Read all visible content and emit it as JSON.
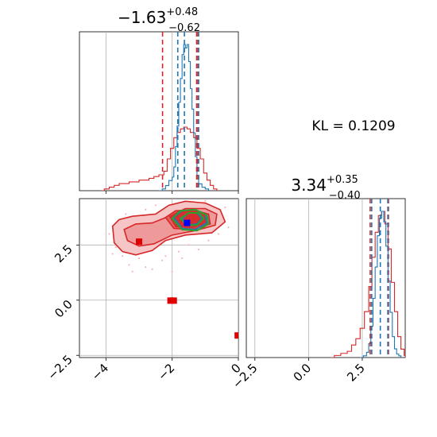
{
  "chart_data": {
    "type": "corner",
    "panels": [
      {
        "id": "param1_hist",
        "kind": "histogram",
        "title": {
          "value": "−1.63",
          "plus": "+0.48",
          "minus": "−0.62"
        },
        "xlim": [
          -4.8,
          0.0
        ],
        "grid": true,
        "blue_step": [
          [
            -2.4,
            0
          ],
          [
            -2.3,
            1
          ],
          [
            -2.2,
            3
          ],
          [
            -2.1,
            6
          ],
          [
            -2.0,
            8
          ],
          [
            -1.95,
            14
          ],
          [
            -1.9,
            26
          ],
          [
            -1.85,
            38
          ],
          [
            -1.8,
            52
          ],
          [
            -1.75,
            66
          ],
          [
            -1.7,
            80
          ],
          [
            -1.65,
            86
          ],
          [
            -1.6,
            84
          ],
          [
            -1.55,
            86
          ],
          [
            -1.5,
            76
          ],
          [
            -1.45,
            60
          ],
          [
            -1.4,
            48
          ],
          [
            -1.35,
            34
          ],
          [
            -1.3,
            20
          ],
          [
            -1.25,
            9
          ],
          [
            -1.2,
            4
          ],
          [
            -1.1,
            2
          ],
          [
            -1.0,
            1
          ],
          [
            -0.9,
            0
          ]
        ],
        "red_step": [
          [
            -4.15,
            0
          ],
          [
            -4.05,
            1
          ],
          [
            -3.9,
            2
          ],
          [
            -3.75,
            3
          ],
          [
            -3.6,
            4
          ],
          [
            -3.45,
            4
          ],
          [
            -3.3,
            5
          ],
          [
            -3.15,
            5
          ],
          [
            -3.0,
            6
          ],
          [
            -2.85,
            6
          ],
          [
            -2.7,
            7
          ],
          [
            -2.55,
            8
          ],
          [
            -2.4,
            9
          ],
          [
            -2.25,
            11
          ],
          [
            -2.15,
            18
          ],
          [
            -2.05,
            24
          ],
          [
            -1.95,
            30
          ],
          [
            -1.85,
            33
          ],
          [
            -1.75,
            35
          ],
          [
            -1.65,
            36
          ],
          [
            -1.55,
            35
          ],
          [
            -1.45,
            33
          ],
          [
            -1.35,
            30
          ],
          [
            -1.25,
            24
          ],
          [
            -1.15,
            18
          ],
          [
            -1.05,
            10
          ],
          [
            -0.95,
            6
          ],
          [
            -0.85,
            3
          ],
          [
            -0.75,
            1
          ],
          [
            -0.65,
            0
          ]
        ],
        "vlines_red": [
          -2.29,
          -1.26,
          -1.22
        ],
        "vlines_blue": [
          -1.83,
          -1.63,
          -1.2
        ]
      },
      {
        "id": "param2_hist",
        "kind": "histogram",
        "title": {
          "value": "3.34",
          "plus": "+0.35",
          "minus": "−0.40"
        },
        "xlim": [
          -2.9,
          4.5
        ],
        "xticks": [
          -2.5,
          0.0,
          2.5
        ],
        "xtick_labels": [
          "−2.5",
          "0.0",
          "2.5"
        ],
        "grid": true,
        "blue_step": [
          [
            2.4,
            0
          ],
          [
            2.55,
            1
          ],
          [
            2.7,
            3
          ],
          [
            2.8,
            8
          ],
          [
            2.9,
            18
          ],
          [
            3.0,
            34
          ],
          [
            3.1,
            52
          ],
          [
            3.2,
            70
          ],
          [
            3.3,
            80
          ],
          [
            3.4,
            84
          ],
          [
            3.5,
            78
          ],
          [
            3.6,
            64
          ],
          [
            3.7,
            44
          ],
          [
            3.8,
            26
          ],
          [
            3.9,
            12
          ],
          [
            4.0,
            5
          ],
          [
            4.1,
            2
          ],
          [
            4.2,
            1
          ],
          [
            4.3,
            0
          ]
        ],
        "red_step": [
          [
            1.0,
            0
          ],
          [
            1.2,
            1
          ],
          [
            1.5,
            2
          ],
          [
            1.8,
            3
          ],
          [
            2.0,
            6
          ],
          [
            2.2,
            9
          ],
          [
            2.4,
            14
          ],
          [
            2.6,
            22
          ],
          [
            2.8,
            34
          ],
          [
            2.95,
            48
          ],
          [
            3.1,
            60
          ],
          [
            3.25,
            68
          ],
          [
            3.4,
            70
          ],
          [
            3.55,
            64
          ],
          [
            3.7,
            52
          ],
          [
            3.85,
            36
          ],
          [
            4.0,
            22
          ],
          [
            4.15,
            10
          ],
          [
            4.3,
            4
          ],
          [
            4.45,
            1
          ],
          [
            4.5,
            0
          ]
        ],
        "vlines_red": [
          2.87,
          3.7,
          3.72
        ],
        "vlines_blue": [
          2.94,
          3.34,
          3.69
        ]
      },
      {
        "id": "param1_vs_param2",
        "kind": "2d_contour",
        "xlim": [
          -4.8,
          0.0
        ],
        "ylim": [
          -2.6,
          4.6
        ],
        "xticks": [
          -4,
          -2,
          0
        ],
        "xtick_labels": [
          "−4",
          "−2",
          "0"
        ],
        "yticks": [
          -2.5,
          0.0,
          2.5
        ],
        "ytick_labels": [
          "−2.5",
          "0.0",
          "2.5"
        ],
        "grid": true,
        "red_contours": [
          [
            [
              -3.8,
              3.35
            ],
            [
              -3.6,
              3.65
            ],
            [
              -3.2,
              3.8
            ],
            [
              -2.5,
              3.9
            ],
            [
              -2.1,
              4.3
            ],
            [
              -1.6,
              4.48
            ],
            [
              -1.0,
              4.4
            ],
            [
              -0.55,
              4.1
            ],
            [
              -0.4,
              3.55
            ],
            [
              -0.8,
              3.05
            ],
            [
              -1.6,
              2.95
            ],
            [
              -2.2,
              2.7
            ],
            [
              -2.6,
              2.25
            ],
            [
              -3.1,
              2.05
            ],
            [
              -3.5,
              2.2
            ],
            [
              -3.75,
              2.6
            ],
            [
              -3.8,
              3.35
            ]
          ],
          [
            [
              -3.45,
              3.2
            ],
            [
              -3.1,
              3.45
            ],
            [
              -2.6,
              3.5
            ],
            [
              -2.1,
              3.8
            ],
            [
              -1.6,
              4.15
            ],
            [
              -1.0,
              4.15
            ],
            [
              -0.65,
              3.9
            ],
            [
              -0.7,
              3.4
            ],
            [
              -1.3,
              3.15
            ],
            [
              -2.0,
              2.95
            ],
            [
              -2.55,
              2.55
            ],
            [
              -3.0,
              2.45
            ],
            [
              -3.35,
              2.7
            ],
            [
              -3.45,
              3.2
            ]
          ],
          [
            [
              -2.2,
              3.75
            ],
            [
              -1.9,
              4.05
            ],
            [
              -1.4,
              4.1
            ],
            [
              -0.9,
              3.9
            ],
            [
              -0.85,
              3.45
            ],
            [
              -1.4,
              3.2
            ],
            [
              -1.95,
              3.25
            ],
            [
              -2.2,
              3.75
            ]
          ]
        ],
        "red_fill": [
          [
            -2.1,
            3.8
          ],
          [
            -1.8,
            4.05
          ],
          [
            -1.3,
            4.05
          ],
          [
            -0.95,
            3.85
          ],
          [
            -0.95,
            3.45
          ],
          [
            -1.4,
            3.25
          ],
          [
            -1.9,
            3.3
          ],
          [
            -2.1,
            3.8
          ]
        ],
        "blue_contours": [
          [
            [
              -1.95,
              3.75
            ],
            [
              -1.7,
              4.05
            ],
            [
              -1.3,
              4.1
            ],
            [
              -1.0,
              3.9
            ],
            [
              -0.95,
              3.5
            ],
            [
              -1.3,
              3.2
            ],
            [
              -1.7,
              3.25
            ],
            [
              -1.95,
              3.75
            ]
          ],
          [
            [
              -1.7,
              3.7
            ],
            [
              -1.5,
              3.95
            ],
            [
              -1.25,
              3.95
            ],
            [
              -1.1,
              3.7
            ],
            [
              -1.25,
              3.45
            ],
            [
              -1.55,
              3.4
            ],
            [
              -1.7,
              3.7
            ]
          ]
        ],
        "green_contours": [
          [
            [
              -2.0,
              3.7
            ],
            [
              -1.75,
              4.05
            ],
            [
              -1.3,
              4.1
            ],
            [
              -0.95,
              3.85
            ],
            [
              -0.9,
              3.45
            ],
            [
              -1.25,
              3.15
            ],
            [
              -1.7,
              3.2
            ],
            [
              -2.0,
              3.7
            ]
          ],
          [
            [
              -1.75,
              3.7
            ],
            [
              -1.5,
              3.95
            ],
            [
              -1.2,
              3.95
            ],
            [
              -1.05,
              3.7
            ],
            [
              -1.25,
              3.4
            ],
            [
              -1.55,
              3.4
            ],
            [
              -1.75,
              3.7
            ]
          ]
        ],
        "red_markers": [
          {
            "x": -3.0,
            "y": 2.65
          },
          {
            "x": -2.05,
            "y": -0.02
          },
          {
            "x": -1.95,
            "y": -0.02
          },
          {
            "x": -0.02,
            "y": -1.6
          }
        ],
        "blue_marker": {
          "x": -1.55,
          "y": 3.5
        },
        "scatter": [
          [
            -3.9,
            3.0
          ],
          [
            -3.7,
            2.4
          ],
          [
            -3.5,
            2.0
          ],
          [
            -3.3,
            1.6
          ],
          [
            -3.0,
            1.9
          ],
          [
            -2.8,
            1.5
          ],
          [
            -2.6,
            1.4
          ],
          [
            -2.3,
            1.8
          ],
          [
            -2.0,
            1.3
          ],
          [
            -1.8,
            2.2
          ],
          [
            -1.5,
            2.5
          ],
          [
            -1.2,
            2.3
          ],
          [
            -0.9,
            2.7
          ],
          [
            -0.6,
            3.0
          ],
          [
            -0.3,
            3.3
          ],
          [
            -2.5,
            4.3
          ],
          [
            -2.8,
            4.1
          ],
          [
            -3.4,
            3.9
          ],
          [
            -1.0,
            4.5
          ],
          [
            -0.4,
            4.2
          ],
          [
            -3.8,
            2.1
          ],
          [
            -2.2,
            2.0
          ],
          [
            -1.7,
            1.9
          ],
          [
            -3.2,
            1.3
          ]
        ]
      }
    ],
    "annotation": {
      "label": "KL = 0.1209"
    }
  }
}
